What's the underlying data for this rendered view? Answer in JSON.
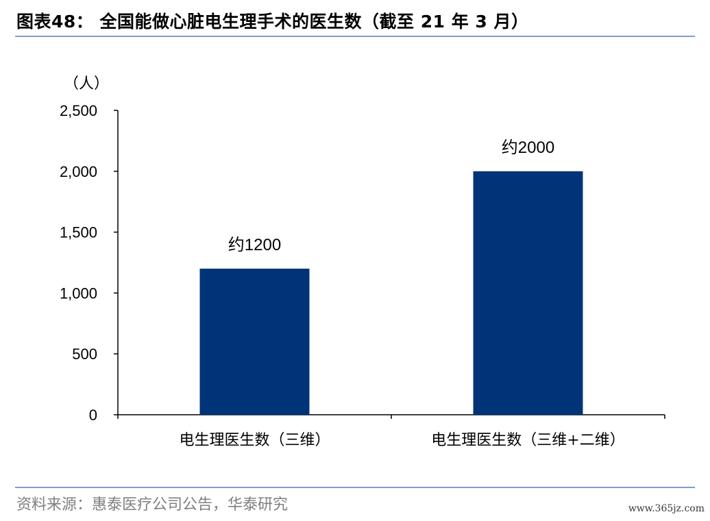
{
  "header": {
    "title": "图表48：  全国能做心脏电生理手术的医生数（截至 21 年 3 月）"
  },
  "footer": {
    "source": "资料来源：惠泰医疗公司公告，华泰研究",
    "watermark": "www.365jz.com"
  },
  "colors": {
    "bar": "#003478",
    "rule": "#7f9ccf"
  },
  "chart_data": {
    "type": "bar",
    "title": "全国能做心脏电生理手术的医生数（截至 21 年 3 月）",
    "unit_label": "（人）",
    "categories": [
      "电生理医生数（三维）",
      "电生理医生数（三维+二维）"
    ],
    "values": [
      1200,
      2000
    ],
    "data_labels": [
      "约1200",
      "约2000"
    ],
    "ylim": [
      0,
      2500
    ],
    "yticks": [
      0,
      500,
      1000,
      1500,
      2000,
      2500
    ],
    "ytick_labels": [
      "0",
      "500",
      "1,000",
      "1,500",
      "2,000",
      "2,500"
    ],
    "grid": false,
    "legend": "none"
  }
}
